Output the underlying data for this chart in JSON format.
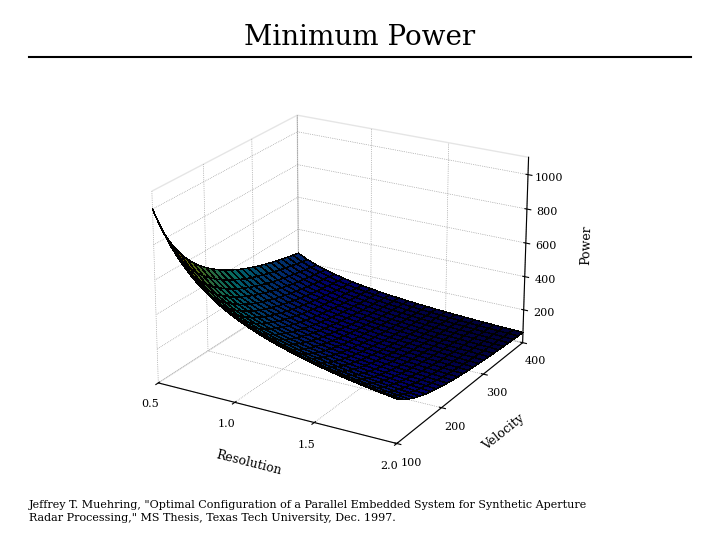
{
  "title": "Minimum Power",
  "xlabel": "Resolution",
  "ylabel": "Velocity",
  "zlabel": "Power",
  "resolution_range": [
    0.5,
    2.0
  ],
  "velocity_range": [
    100,
    400
  ],
  "resolution_ticks": [
    0.5,
    1.0,
    1.5,
    2.0
  ],
  "velocity_ticks": [
    100,
    200,
    300,
    400
  ],
  "power_ticks": [
    200,
    400,
    600,
    800,
    1000
  ],
  "zlim": [
    0,
    1100
  ],
  "n_res": 25,
  "n_vel": 25,
  "elev": 22,
  "azim": -60,
  "background_color": "#ffffff",
  "citation": "Jeffrey T. Muehring, \"Optimal Configuration of a Parallel Embedded System for Synthetic Aperture\nRadar Processing,\" MS Thesis, Texas Tech University, Dec. 1997.",
  "title_fontsize": 20,
  "label_fontsize": 9,
  "tick_fontsize": 8,
  "citation_fontsize": 8,
  "C": 50000.0,
  "alpha": 1.0,
  "beta": 1.0
}
